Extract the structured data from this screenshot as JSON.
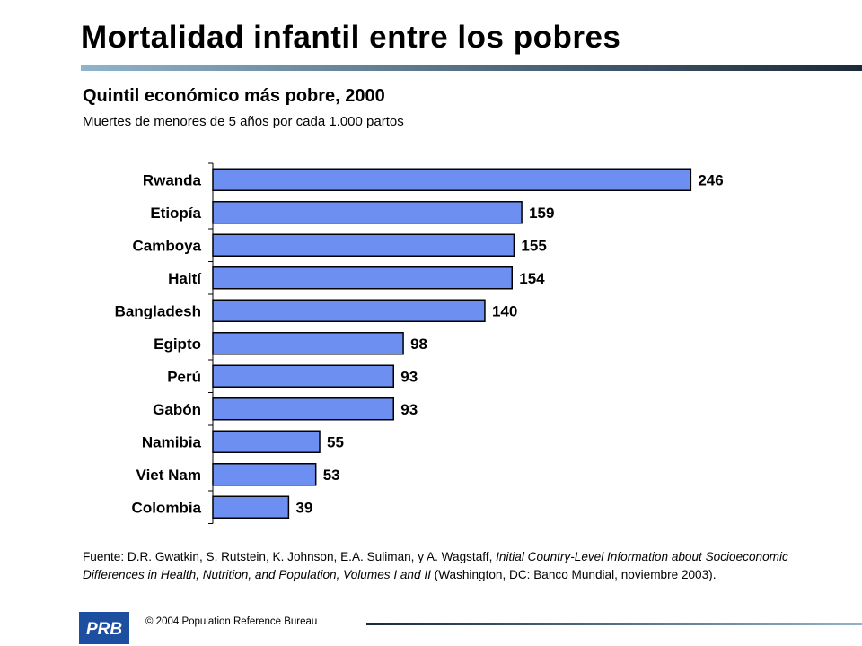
{
  "title": "Mortalidad infantil entre los pobres",
  "subtitle": "Quintil económico más pobre, 2000",
  "subtitle2": "Muertes de menores de 5 años por cada 1.000 partos",
  "source": {
    "prefix": "Fuente: D.R. Gwatkin, S. Rutstein, K. Johnson, E.A. Suliman, y A. Wagstaff, ",
    "italic": "Initial Country-Level Information about Socioeconomic Differences in Health, Nutrition, and Population, Volumes I and II",
    "suffix": " (Washington, DC: Banco Mundial, noviembre 2003)."
  },
  "footer": {
    "copyright": "© 2004  Population Reference Bureau",
    "logo_text": "PRB"
  },
  "colors": {
    "bar_fill": "#6d8ff1",
    "bar_stroke": "#000000",
    "rule_dark": "#1a2a3a",
    "rule_light": "#8fb4cc",
    "logo_blue": "#1d4fa0"
  },
  "chart_data": {
    "type": "bar",
    "orientation": "horizontal",
    "categories": [
      "Rwanda",
      "Etiopía",
      "Camboya",
      "Haití",
      "Bangladesh",
      "Egipto",
      "Perú",
      "Gabón",
      "Namibia",
      "Viet Nam",
      "Colombia"
    ],
    "values": [
      246,
      159,
      155,
      154,
      140,
      98,
      93,
      93,
      55,
      53,
      39
    ],
    "data_labels": [
      "246",
      "159",
      "155",
      "154",
      "140",
      "98",
      "93",
      "93",
      "55",
      "53",
      "39"
    ],
    "xlim": [
      0,
      250
    ],
    "grid": false,
    "legend": "none"
  }
}
